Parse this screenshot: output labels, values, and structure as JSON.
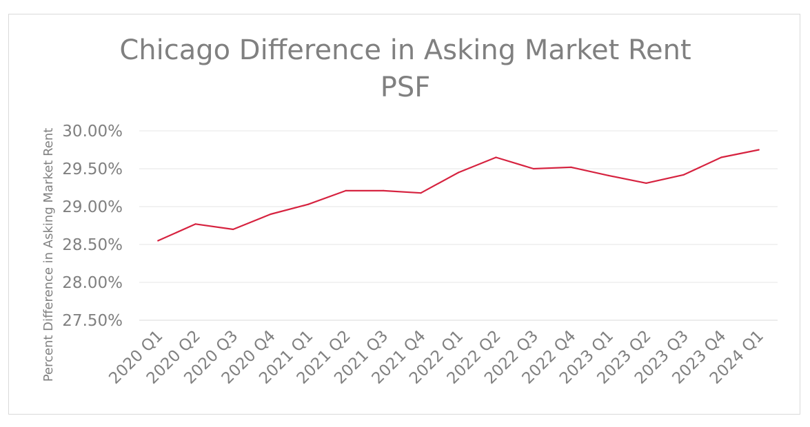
{
  "chart_data": {
    "type": "line",
    "title_lines": [
      "Chicago Difference in Asking Market Rent",
      "PSF"
    ],
    "xlabel": "",
    "ylabel": "Percent Difference in Asking Market Rent",
    "categories": [
      "2020 Q1",
      "2020 Q2",
      "2020 Q3",
      "2020 Q4",
      "2021 Q1",
      "2021 Q2",
      "2021 Q3",
      "2021 Q4",
      "2022 Q1",
      "2022 Q2",
      "2022 Q3",
      "2022 Q4",
      "2023 Q1",
      "2023 Q2",
      "2023 Q3",
      "2023 Q4",
      "2024 Q1"
    ],
    "series": [
      {
        "values": [
          28.55,
          28.77,
          28.7,
          28.9,
          29.03,
          29.21,
          29.21,
          29.18,
          29.45,
          29.65,
          29.5,
          29.52,
          29.41,
          29.31,
          29.42,
          29.65,
          29.75
        ],
        "color": "#d6223f"
      }
    ],
    "yticks": [
      "27.50%",
      "28.00%",
      "28.50%",
      "29.00%",
      "29.50%",
      "30.00%"
    ],
    "ylim": [
      27.5,
      30.0
    ],
    "grid": true,
    "legend": "none"
  }
}
